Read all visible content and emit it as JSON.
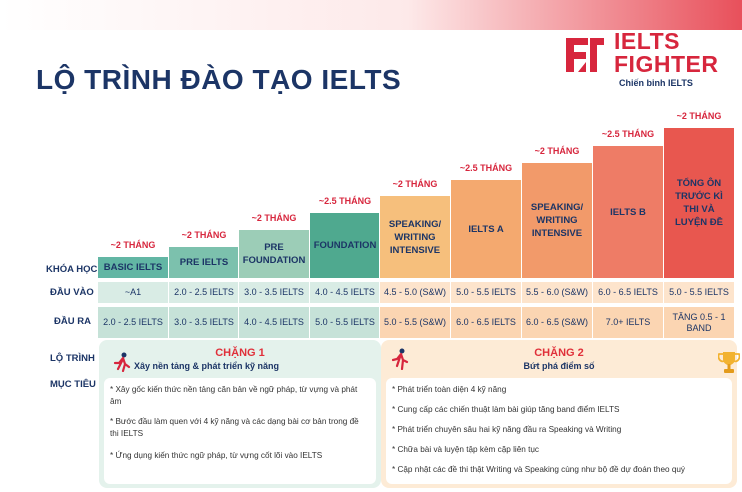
{
  "title": "LỘ TRÌNH ĐÀO TẠO IELTS",
  "logo": {
    "line1": "IELTS",
    "line2": "FIGHTER",
    "tagline": "Chiến binh IELTS",
    "color": "#d7263d"
  },
  "row_labels": {
    "course": "KHÓA HỌC",
    "input": "ĐẦU VÀO",
    "output": "ĐẦU RA",
    "roadmap": "LỘ TRÌNH",
    "goal": "MỤC TIÊU"
  },
  "courses": [
    {
      "duration": "~2 THÁNG",
      "name": "BASIC IELTS",
      "input": "~A1",
      "output": "2.0 - 2.5 IELTS"
    },
    {
      "duration": "~2 THÁNG",
      "name": "PRE IELTS",
      "input": "2.0 - 2.5 IELTS",
      "output": "3.0 - 3.5 IELTS"
    },
    {
      "duration": "~2 THÁNG",
      "name": "PRE FOUNDATION",
      "input": "3.0 - 3.5 IELTS",
      "output": "4.0 - 4.5 IELTS"
    },
    {
      "duration": "~2.5 THÁNG",
      "name": "FOUNDATION",
      "input": "4.0 - 4.5 IELTS",
      "output": "5.0 - 5.5 IELTS"
    },
    {
      "duration": "~2 THÁNG",
      "name": "SPEAKING/ WRITING INTENSIVE",
      "input": "4.5 - 5.0 (S&W)",
      "output": "5.0 - 5.5 (S&W)"
    },
    {
      "duration": "~2.5 THÁNG",
      "name": "IELTS A",
      "input": "5.0 - 5.5 IELTS",
      "output": "6.0 - 6.5 IELTS"
    },
    {
      "duration": "~2 THÁNG",
      "name": "SPEAKING/ WRITING INTENSIVE",
      "input": "5.5 - 6.0 (S&W)",
      "output": "6.0 - 6.5 (S&W)"
    },
    {
      "duration": "~2.5 THÁNG",
      "name": "IELTS B",
      "input": "6.0 - 6.5 IELTS",
      "output": "7.0+ IELTS"
    },
    {
      "duration": "~2 THÁNG",
      "name": "TỔNG ÔN TRƯỚC KÌ THI VÀ LUYỆN ĐỀ",
      "input": "5.0 - 5.5 IELTS",
      "output": "TĂNG 0.5 - 1 BAND"
    }
  ],
  "colors": [
    "#62b6a4",
    "#7cc1ad",
    "#9ccdb7",
    "#4fa98f",
    "#f6bf7c",
    "#f4a96f",
    "#f29a6a",
    "#ee7c66",
    "#e8574f"
  ],
  "stage1": {
    "title": "CHẶNG 1",
    "subtitle": "Xây nền tảng & phát triển kỹ năng",
    "goals": [
      "Xây gốc kiến thức nền tảng căn bản về ngữ pháp, từ vựng và phát âm",
      "Bước đầu làm quen với 4 kỹ năng và các dạng bài cơ bản trong đề thi IELTS",
      "Ứng dụng kiến thức ngữ pháp, từ vựng cốt lõi vào IELTS"
    ]
  },
  "stage2": {
    "title": "CHẶNG 2",
    "subtitle": "Bứt phá điểm số",
    "goals": [
      "Phát triển toàn diện 4 kỹ năng",
      "Cung cấp các chiến thuật làm bài giúp tăng band điểm IELTS",
      "Phát triển chuyên sâu hai kỹ năng đầu ra Speaking và Writing",
      "Chữa bài và luyện tập kèm cặp liên tục",
      "Cập nhật các đề thi thật Writing và Speaking cùng như bộ đề dự đoán theo quý"
    ]
  }
}
